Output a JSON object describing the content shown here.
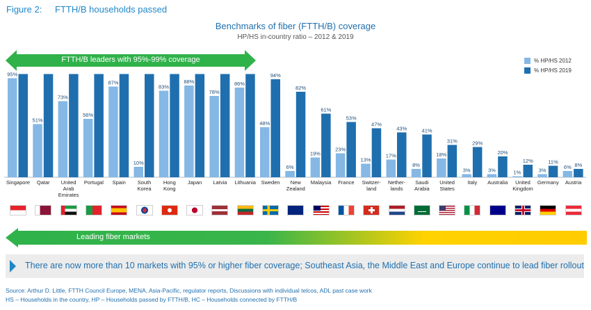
{
  "figure": {
    "number": "Figure 2:",
    "title": "FTTH/B households passed"
  },
  "title": "Benchmarks of fiber (FTTH/B) coverage",
  "subtitle": "HP/HS in-country ratio – 2012 & 2019",
  "leaders_banner": "FTTH/B leaders with 95%-99% coverage",
  "legend": {
    "series_2012": "% HP/HS 2012",
    "series_2019": "% HP/HS 2019"
  },
  "colors": {
    "series_2012": "#85b8e5",
    "series_2019": "#1f6fae",
    "green": "#2fb24a",
    "yellow": "#ffd200",
    "accent_text": "#1f86c8"
  },
  "chart_data": {
    "type": "bar",
    "title": "Benchmarks of fiber (FTTH/B) coverage",
    "subtitle": "HP/HS in-country ratio – 2012 & 2019",
    "categories": [
      "Singapore",
      "Qatar",
      "United Arab Emirates",
      "Portugal",
      "Spain",
      "South Korea",
      "Hong Kong",
      "Japan",
      "Latvia",
      "Lithuania",
      "Sweden",
      "New Zealand",
      "Malaysia",
      "France",
      "Switzer-land",
      "Nether-lands",
      "Saudi Arabia",
      "United States",
      "Italy",
      "Australia",
      "United Kingdom",
      "Germany",
      "Austria"
    ],
    "category_lines": [
      [
        "Singapore"
      ],
      [
        "Qatar"
      ],
      [
        "United",
        "Arab",
        "Emirates"
      ],
      [
        "Portugal"
      ],
      [
        "Spain"
      ],
      [
        "South",
        "Korea"
      ],
      [
        "Hong",
        "Kong"
      ],
      [
        "Japan"
      ],
      [
        "Latvia"
      ],
      [
        "Lithuania"
      ],
      [
        "Sweden"
      ],
      [
        "New",
        "Zealand"
      ],
      [
        "Malaysia"
      ],
      [
        "France"
      ],
      [
        "Switzer-",
        "land"
      ],
      [
        "Nether-",
        "lands"
      ],
      [
        "Saudi",
        "Arabia"
      ],
      [
        "United",
        "States"
      ],
      [
        "Italy"
      ],
      [
        "Australia"
      ],
      [
        "United",
        "Kingdom"
      ],
      [
        "Germany"
      ],
      [
        "Austria"
      ]
    ],
    "series": [
      {
        "name": "% HP/HS 2012",
        "values": [
          95,
          51,
          73,
          56,
          87,
          10,
          83,
          88,
          78,
          86,
          48,
          6,
          19,
          23,
          13,
          17,
          8,
          18,
          3,
          3,
          1,
          3,
          6
        ],
        "labels": [
          "95%",
          "51%",
          "73%",
          "56%",
          "87%",
          "10%",
          "83%",
          "88%",
          "78%",
          "86%",
          "48%",
          "6%",
          "19%",
          "23%",
          "13%",
          "17%",
          "8%",
          "18%",
          "3%",
          "3%",
          "1%",
          "3%",
          "6%"
        ]
      },
      {
        "name": "% HP/HS 2019",
        "values": [
          99,
          99,
          99,
          99,
          99,
          99,
          99,
          99,
          99,
          99,
          94,
          82,
          61,
          53,
          47,
          43,
          41,
          31,
          29,
          20,
          12,
          11,
          8
        ],
        "labels": [
          "",
          "",
          "",
          "",
          "",
          "",
          "",
          "",
          "",
          "",
          "94%",
          "82%",
          "61%",
          "53%",
          "47%",
          "43%",
          "41%",
          "31%",
          "29%",
          "20%",
          "12%",
          "11%",
          "8%"
        ]
      }
    ],
    "ylim": [
      0,
      100
    ],
    "grid": false,
    "legend": "top-right"
  },
  "flags": [
    "singapore-flag",
    "qatar-flag",
    "uae-flag",
    "portugal-flag",
    "spain-flag",
    "south-korea-flag",
    "hong-kong-flag",
    "japan-flag",
    "latvia-flag",
    "lithuania-flag",
    "sweden-flag",
    "new-zealand-flag",
    "malaysia-flag",
    "france-flag",
    "switzerland-flag",
    "netherlands-flag",
    "saudi-arabia-flag",
    "united-states-flag",
    "italy-flag",
    "australia-flag",
    "united-kingdom-flag",
    "germany-flag",
    "austria-flag"
  ],
  "markets_banner": "Leading fiber markets",
  "callout": "There are now more than 10 markets with 95% or higher fiber coverage; Southeast Asia, the Middle East and Europe continue to lead fiber rollout",
  "source": "Source: Arthur D. Little, FTTH Council Europe, MENA, Asia-Pacific, regulator reports, Discussions with individual telcos, ADL past case work",
  "definitions": "HS – Households in the country, HP – Households passed by FTTH/B, HC – Households connected by FTTH/B"
}
